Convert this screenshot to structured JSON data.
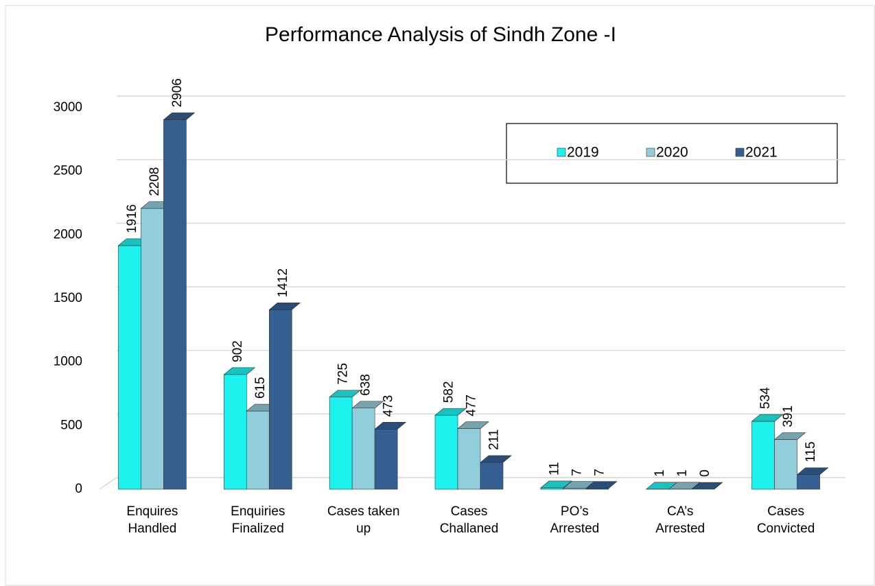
{
  "chart_data": {
    "type": "bar3d",
    "title": "Performance Analysis of Sindh Zone -I",
    "categories": [
      [
        "Enquires",
        "Handled"
      ],
      [
        "Enquiries",
        "Finalized"
      ],
      [
        "Cases taken",
        "up"
      ],
      [
        "Cases",
        "Challaned"
      ],
      [
        "PO’s",
        "Arrested"
      ],
      [
        "CA’s",
        "Arrested"
      ],
      [
        "Cases",
        "Convicted"
      ]
    ],
    "series": [
      {
        "name": "2019",
        "color": "#1ef2ee",
        "values": [
          1916,
          902,
          725,
          582,
          11,
          1,
          534
        ]
      },
      {
        "name": "2020",
        "color": "#92cddc",
        "values": [
          2208,
          615,
          638,
          477,
          7,
          1,
          391
        ]
      },
      {
        "name": "2021",
        "color": "#365f91",
        "values": [
          2906,
          1412,
          473,
          211,
          7,
          0,
          115
        ]
      }
    ],
    "ylim": [
      0,
      3000
    ],
    "yticks": [
      0,
      500,
      1000,
      1500,
      2000,
      2500,
      3000
    ],
    "grid": true,
    "legend": "top-right"
  }
}
